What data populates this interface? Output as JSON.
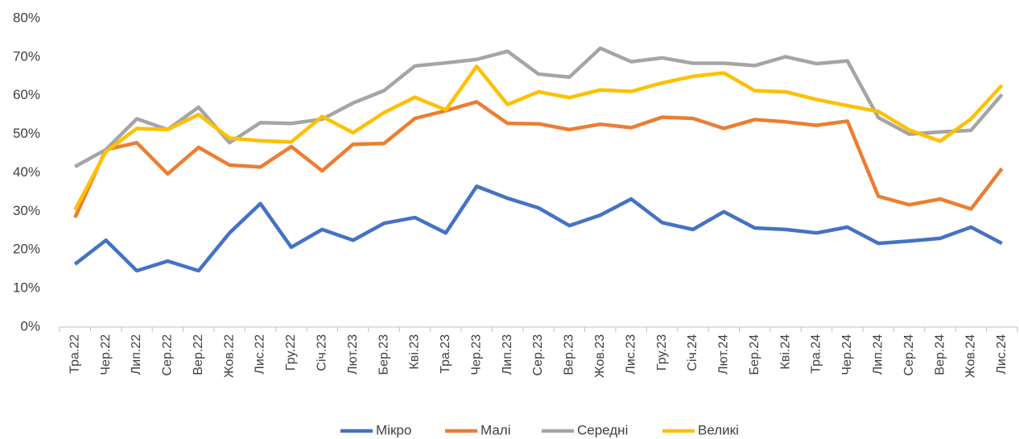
{
  "chart_data": {
    "type": "line",
    "categories": [
      "Тра.22",
      "Чер.22",
      "Лип.22",
      "Сер.22",
      "Вер.22",
      "Жов.22",
      "Лис.22",
      "Гру.22",
      "Січ.23",
      "Лют.23",
      "Бер.23",
      "Кві.23",
      "Тра.23",
      "Чер.23",
      "Лип.23",
      "Сер.23",
      "Вер.23",
      "Жов.23",
      "Лис.23",
      "Гру.23",
      "Січ.24",
      "Лют.24",
      "Бер.24",
      "Кві.24",
      "Тра.24",
      "Чер.24",
      "Лип.24",
      "Сер.24",
      "Вер.24",
      "Жов.24",
      "Лис.24"
    ],
    "series": [
      {
        "name": "Мікро",
        "color": "#4472c4",
        "values": [
          16.3,
          22.5,
          14.6,
          17.1,
          14.6,
          24.4,
          32,
          20.7,
          25.3,
          22.5,
          26.9,
          28.4,
          24.4,
          36.5,
          33.4,
          30.9,
          26.3,
          29,
          33.2,
          27.1,
          25.3,
          29.9,
          25.7,
          25.3,
          24.4,
          25.9,
          21.7,
          22.3,
          23,
          25.9,
          21.7
        ]
      },
      {
        "name": "Малі",
        "color": "#ed7d31",
        "values": [
          28.4,
          46,
          47.8,
          39.7,
          46.6,
          42,
          41.5,
          46.8,
          40.5,
          47.4,
          47.6,
          54.1,
          56.1,
          58.4,
          52.8,
          52.7,
          51.2,
          52.6,
          51.7,
          54.4,
          54.1,
          51.5,
          53.8,
          53.2,
          52.3,
          53.4,
          33.9,
          31.7,
          33.2,
          30.6,
          41.1
        ]
      },
      {
        "name": "Середні",
        "color": "#a5a5a5",
        "values": [
          41.6,
          46,
          54,
          51.2,
          57,
          47.8,
          53,
          52.8,
          53.9,
          58.1,
          61.3,
          67.7,
          68.5,
          69.4,
          71.5,
          65.6,
          64.8,
          72.3,
          68.8,
          69.8,
          68.4,
          68.4,
          67.8,
          70.1,
          68.3,
          69,
          54.3,
          50,
          50.6,
          51,
          60.3
        ]
      },
      {
        "name": "Великі",
        "color": "#ffc000",
        "values": [
          30.4,
          45.5,
          51.5,
          51.2,
          55.1,
          49,
          48.3,
          48,
          54.6,
          50.4,
          55.6,
          59.6,
          56.3,
          67.6,
          57.7,
          61,
          59.5,
          61.5,
          61.1,
          63.3,
          65,
          65.9,
          61.3,
          61,
          59,
          57.4,
          55.9,
          51.1,
          48.2,
          54,
          62.7
        ]
      }
    ],
    "ylim": [
      0,
      80
    ],
    "yticks": [
      {
        "value": 0,
        "label": "0%"
      },
      {
        "value": 10,
        "label": "10%"
      },
      {
        "value": 20,
        "label": "20%"
      },
      {
        "value": 30,
        "label": "30%"
      },
      {
        "value": 40,
        "label": "40%"
      },
      {
        "value": 50,
        "label": "50%"
      },
      {
        "value": 60,
        "label": "60%"
      },
      {
        "value": 70,
        "label": "70%"
      },
      {
        "value": 80,
        "label": "80%"
      }
    ],
    "grid": false,
    "legend": "bottom"
  }
}
